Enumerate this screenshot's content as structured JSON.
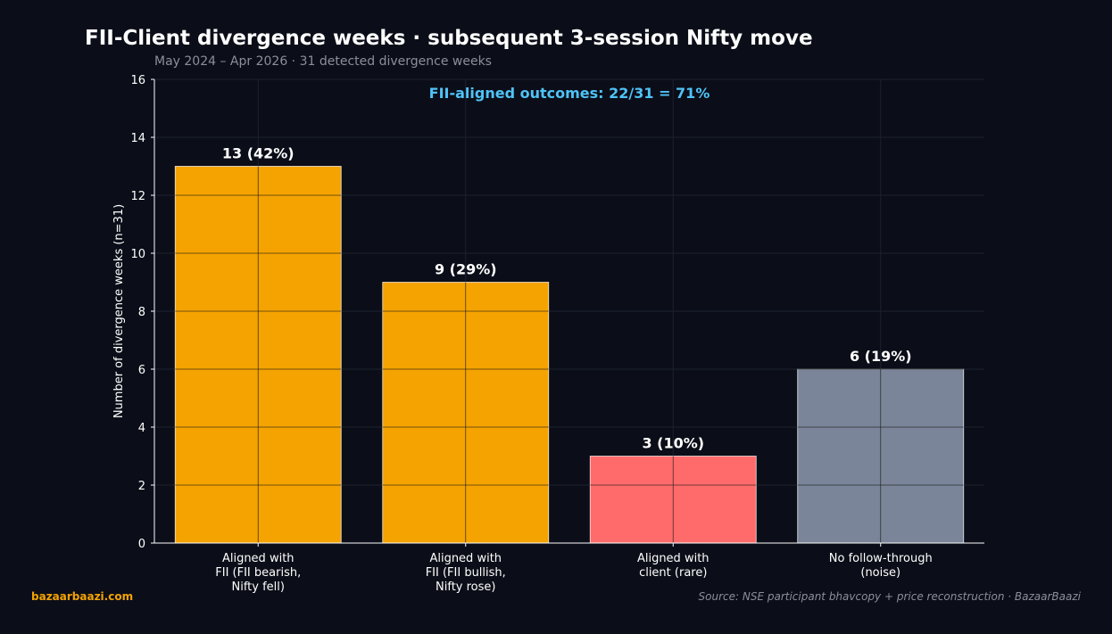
{
  "title": "FII-Client divergence weeks · subsequent 3-session Nifty move",
  "subtitle": "May 2024 – Apr 2026  ·  31 detected divergence weeks",
  "brand": "bazaarbaazi.com",
  "source": "Source: NSE participant bhavcopy + price reconstruction  ·  BazaarBaazi",
  "chart_data": {
    "type": "bar",
    "title": "FII-Client divergence weeks · subsequent 3-session Nifty move",
    "subtitle": "May 2024 – Apr 2026  ·  31 detected divergence weeks",
    "ylabel": "Number of divergence weeks (n=31)",
    "xlabel": "",
    "ylim": [
      0,
      16
    ],
    "yticks": [
      0,
      2,
      4,
      6,
      8,
      10,
      12,
      14,
      16
    ],
    "grid": true,
    "annotation": "FII-aligned outcomes: 22/31 = 71%",
    "categories": [
      [
        "Aligned with",
        "FII (FII bearish,",
        "Nifty fell)"
      ],
      [
        "Aligned with",
        "FII (FII bullish,",
        "Nifty rose)"
      ],
      [
        "Aligned with",
        "client (rare)"
      ],
      [
        "No follow-through",
        "(noise)"
      ]
    ],
    "values": [
      13,
      9,
      3,
      6
    ],
    "value_labels": [
      "13 (42%)",
      "9 (29%)",
      "3 (10%)",
      "6 (19%)"
    ],
    "colors": [
      "#f5a300",
      "#f5a300",
      "#ff6b6b",
      "#7a8599"
    ],
    "colors_meta": {
      "background": "#0b0e18",
      "annotation": "#4fc3f7",
      "text": "#ffffff",
      "muted": "#8a8f9c"
    }
  }
}
